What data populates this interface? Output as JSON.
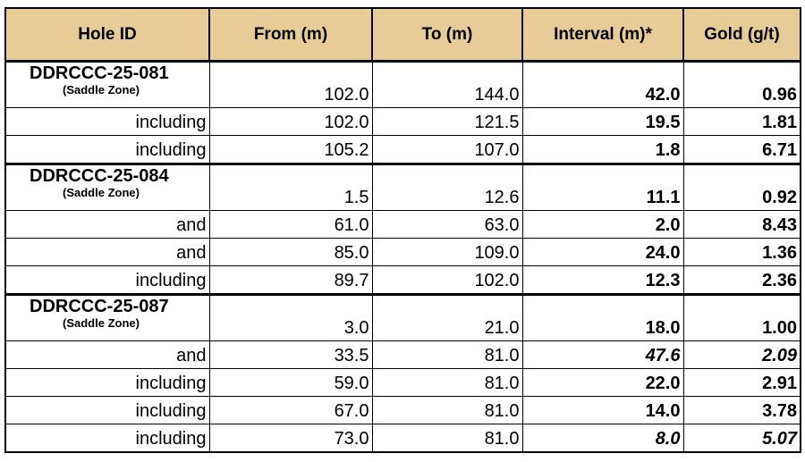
{
  "header_color": "#E8CC97",
  "table": {
    "headers": [
      "Hole ID",
      "From (m)",
      "To (m)",
      "Interval (m)*",
      "Gold (g/t)"
    ],
    "rows": [
      {
        "type": "hole",
        "hole_id": "DDRCCC-25-081",
        "zone": "(Saddle Zone)",
        "from": "102.0",
        "to": "144.0",
        "interval": "42.0",
        "gold": "0.96",
        "italic": false
      },
      {
        "type": "sub",
        "label": "including",
        "from": "102.0",
        "to": "121.5",
        "interval": "19.5",
        "gold": "1.81",
        "italic": false
      },
      {
        "type": "sub",
        "label": "including",
        "from": "105.2",
        "to": "107.0",
        "interval": "1.8",
        "gold": "6.71",
        "italic": false
      },
      {
        "type": "hole",
        "hole_id": "DDRCCC-25-084",
        "zone": "(Saddle Zone)",
        "from": "1.5",
        "to": "12.6",
        "interval": "11.1",
        "gold": "0.92",
        "italic": false
      },
      {
        "type": "sub",
        "label": "and",
        "from": "61.0",
        "to": "63.0",
        "interval": "2.0",
        "gold": "8.43",
        "italic": false
      },
      {
        "type": "sub",
        "label": "and",
        "from": "85.0",
        "to": "109.0",
        "interval": "24.0",
        "gold": "1.36",
        "italic": false
      },
      {
        "type": "sub",
        "label": "including",
        "from": "89.7",
        "to": "102.0",
        "interval": "12.3",
        "gold": "2.36",
        "italic": false
      },
      {
        "type": "hole",
        "hole_id": "DDRCCC-25-087",
        "zone": "(Saddle Zone)",
        "from": "3.0",
        "to": "21.0",
        "interval": "18.0",
        "gold": "1.00",
        "italic": false
      },
      {
        "type": "sub",
        "label": "and",
        "from": "33.5",
        "to": "81.0",
        "interval": "47.6",
        "gold": "2.09",
        "italic": true
      },
      {
        "type": "sub",
        "label": "including",
        "from": "59.0",
        "to": "81.0",
        "interval": "22.0",
        "gold": "2.91",
        "italic": false
      },
      {
        "type": "sub",
        "label": "including",
        "from": "67.0",
        "to": "81.0",
        "interval": "14.0",
        "gold": "3.78",
        "italic": false
      },
      {
        "type": "sub",
        "label": "including",
        "from": "73.0",
        "to": "81.0",
        "interval": "8.0",
        "gold": "5.07",
        "italic": true
      }
    ]
  }
}
